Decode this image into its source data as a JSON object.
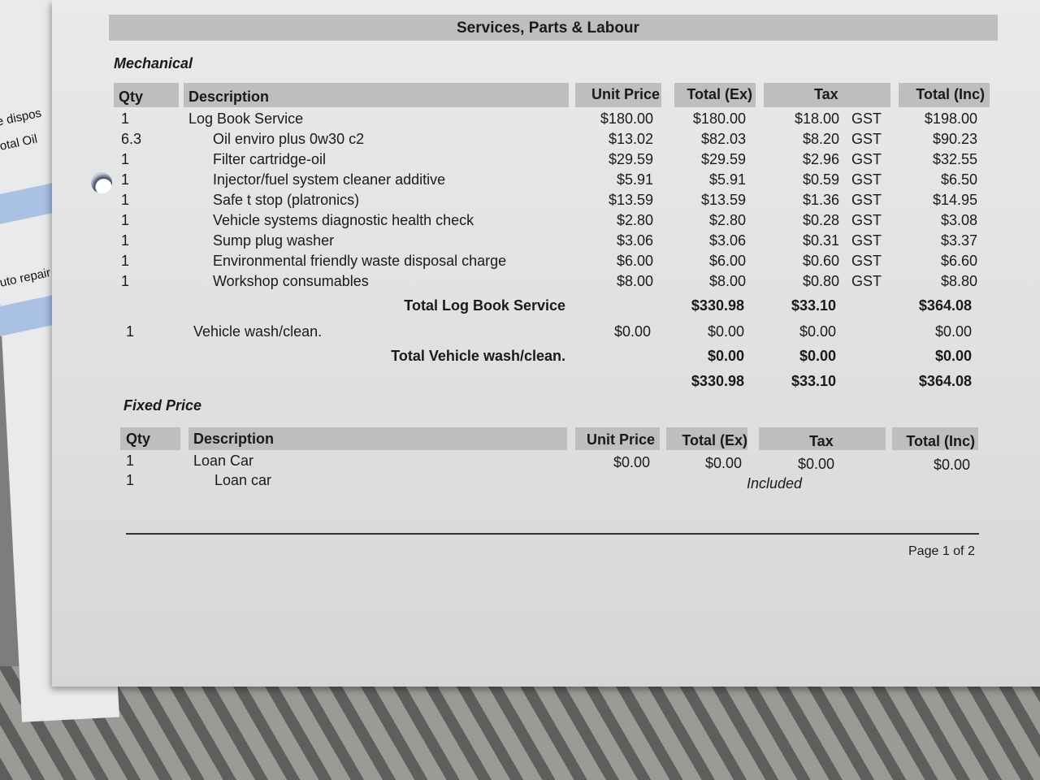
{
  "background_sheet": {
    "fragments": [
      "e dispos",
      "otal Oil",
      "uto repair"
    ]
  },
  "title": "Services, Parts & Labour",
  "mechanical": {
    "section": "Mechanical",
    "headers": {
      "qty": "Qty",
      "description": "Description",
      "unit_price": "Unit Price",
      "total_ex": "Total (Ex)",
      "tax": "Tax",
      "total_inc": "Total (Inc)"
    },
    "rows": [
      {
        "qty": "1",
        "description": "Log Book Service",
        "unit_price": "$180.00",
        "total_ex": "$180.00",
        "tax": "$18.00",
        "tax_code": "GST",
        "total_inc": "$198.00",
        "indent": false
      },
      {
        "qty": "6.3",
        "description": "Oil enviro plus 0w30 c2",
        "unit_price": "$13.02",
        "total_ex": "$82.03",
        "tax": "$8.20",
        "tax_code": "GST",
        "total_inc": "$90.23",
        "indent": true
      },
      {
        "qty": "1",
        "description": "Filter cartridge-oil",
        "unit_price": "$29.59",
        "total_ex": "$29.59",
        "tax": "$2.96",
        "tax_code": "GST",
        "total_inc": "$32.55",
        "indent": true
      },
      {
        "qty": "1",
        "description": "Injector/fuel system cleaner additive",
        "unit_price": "$5.91",
        "total_ex": "$5.91",
        "tax": "$0.59",
        "tax_code": "GST",
        "total_inc": "$6.50",
        "indent": true
      },
      {
        "qty": "1",
        "description": "Safe t stop (platronics)",
        "unit_price": "$13.59",
        "total_ex": "$13.59",
        "tax": "$1.36",
        "tax_code": "GST",
        "total_inc": "$14.95",
        "indent": true
      },
      {
        "qty": "1",
        "description": "Vehicle systems diagnostic health check",
        "unit_price": "$2.80",
        "total_ex": "$2.80",
        "tax": "$0.28",
        "tax_code": "GST",
        "total_inc": "$3.08",
        "indent": true
      },
      {
        "qty": "1",
        "description": "Sump plug washer",
        "unit_price": "$3.06",
        "total_ex": "$3.06",
        "tax": "$0.31",
        "tax_code": "GST",
        "total_inc": "$3.37",
        "indent": true
      },
      {
        "qty": "1",
        "description": "Environmental friendly waste disposal charge",
        "unit_price": "$6.00",
        "total_ex": "$6.00",
        "tax": "$0.60",
        "tax_code": "GST",
        "total_inc": "$6.60",
        "indent": true
      },
      {
        "qty": "1",
        "description": "Workshop consumables",
        "unit_price": "$8.00",
        "total_ex": "$8.00",
        "tax": "$0.80",
        "tax_code": "GST",
        "total_inc": "$8.80",
        "indent": true
      }
    ],
    "subtotal_logbook": {
      "label": "Total Log Book Service",
      "total_ex": "$330.98",
      "tax": "$33.10",
      "total_inc": "$364.08"
    },
    "wash_row": {
      "qty": "1",
      "description": "Vehicle wash/clean.",
      "unit_price": "$0.00",
      "total_ex": "$0.00",
      "tax": "$0.00",
      "total_inc": "$0.00"
    },
    "subtotal_wash": {
      "label": "Total Vehicle wash/clean.",
      "total_ex": "$0.00",
      "tax": "$0.00",
      "total_inc": "$0.00"
    },
    "grand_total": {
      "total_ex": "$330.98",
      "tax": "$33.10",
      "total_inc": "$364.08"
    }
  },
  "fixed_price": {
    "section": "Fixed Price",
    "headers": {
      "qty": "Qty",
      "description": "Description",
      "unit_price": "Unit Price",
      "total_ex": "Total (Ex)",
      "tax": "Tax",
      "total_inc": "Total (Inc)"
    },
    "row1": {
      "qty": "1",
      "description": "Loan Car",
      "unit_price": "$0.00",
      "total_ex": "$0.00",
      "tax": "$0.00",
      "total_inc": "$0.00"
    },
    "row2": {
      "qty": "1",
      "description": "Loan car",
      "note": "Included"
    }
  },
  "footer": {
    "page": "Page 1 of 2"
  }
}
